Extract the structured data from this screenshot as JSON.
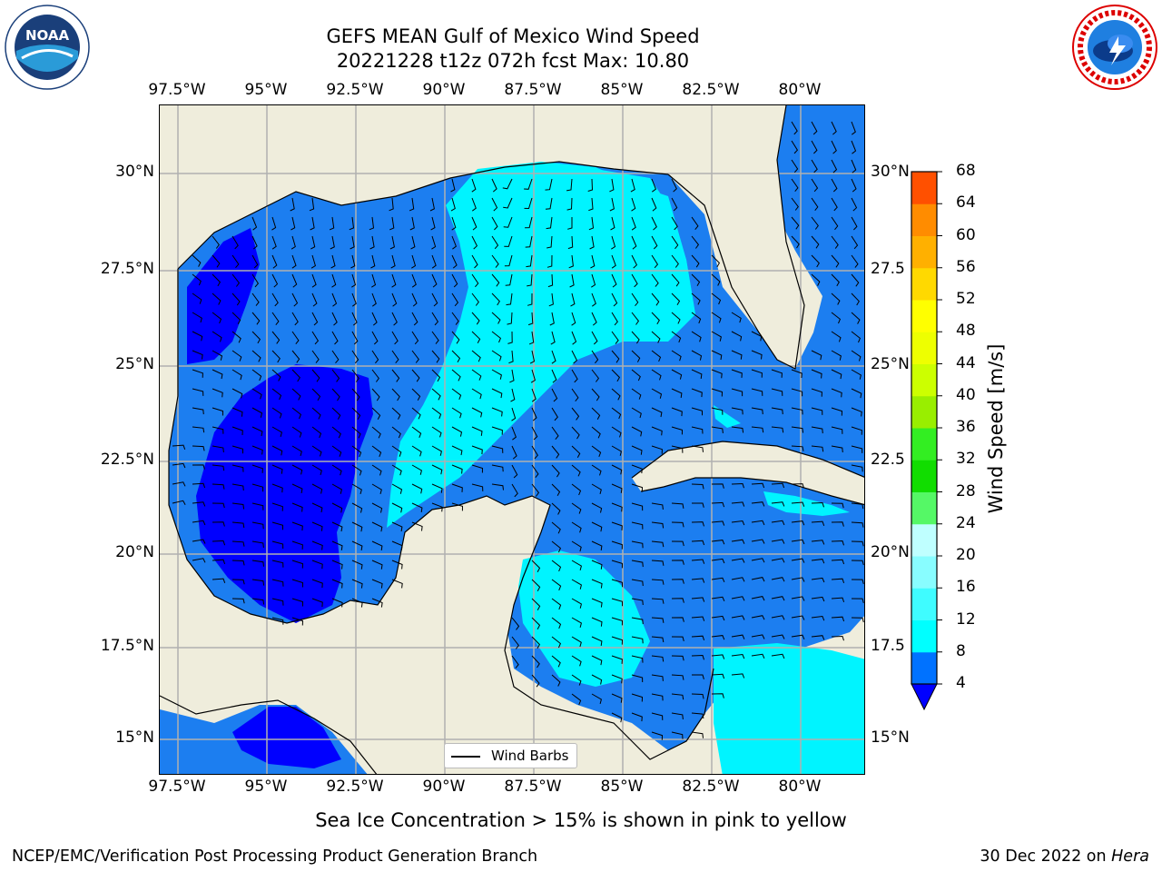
{
  "title_line1": "GEFS MEAN Gulf of Mexico Wind Speed",
  "title_line2": "20221228 t12z 072h fcst   Max: 10.80",
  "subtitle": "Sea Ice Concentration > 15% is shown in pink to yellow",
  "footer_left": "NCEP/EMC/Verification Post Processing Product Generation Branch",
  "footer_date": "30 Dec 2022 on ",
  "footer_host": "Hera",
  "legend_label": "Wind Barbs",
  "colorbar_label": "Wind Speed [m/s]",
  "colorbar_ticks": [
    "4",
    "8",
    "12",
    "16",
    "20",
    "24",
    "28",
    "32",
    "36",
    "40",
    "44",
    "48",
    "52",
    "56",
    "60",
    "64",
    "68"
  ],
  "colorbar_colors": [
    "#0072ff",
    "#00ffff",
    "#3ffdff",
    "#7ffcff",
    "#b2fdff",
    "#55f866",
    "#33ee22",
    "#11dd00",
    "#66ee00",
    "#99ee00",
    "#ccff00",
    "#eeff00",
    "#ffff00",
    "#ffd900",
    "#ffb000",
    "#ff8c00",
    "#ff6400",
    "#ff4600",
    "#ff1e00",
    "#ff0000"
  ],
  "lon_labels": [
    "97.5°W",
    "95°W",
    "92.5°W",
    "90°W",
    "87.5°W",
    "85°W",
    "82.5°W",
    "80°W"
  ],
  "lat_labels_left": [
    "30°N",
    "27.5°N",
    "25°N",
    "22.5°N",
    "20°N",
    "17.5°N",
    "15°N"
  ],
  "lat_labels_right": [
    "30°N",
    "27.5",
    "25°N",
    "22.5",
    "20°N",
    "17.5",
    "15°N"
  ],
  "logos": {
    "left": "noaa-logo",
    "right": "nws-logo"
  },
  "colors": {
    "land": "#efeddc",
    "ocean_4_8": "#1c7ef0",
    "ocean_8_12": "#00f4ff",
    "ocean_low": "#0000ff",
    "grid": "#b0b0b0"
  }
}
